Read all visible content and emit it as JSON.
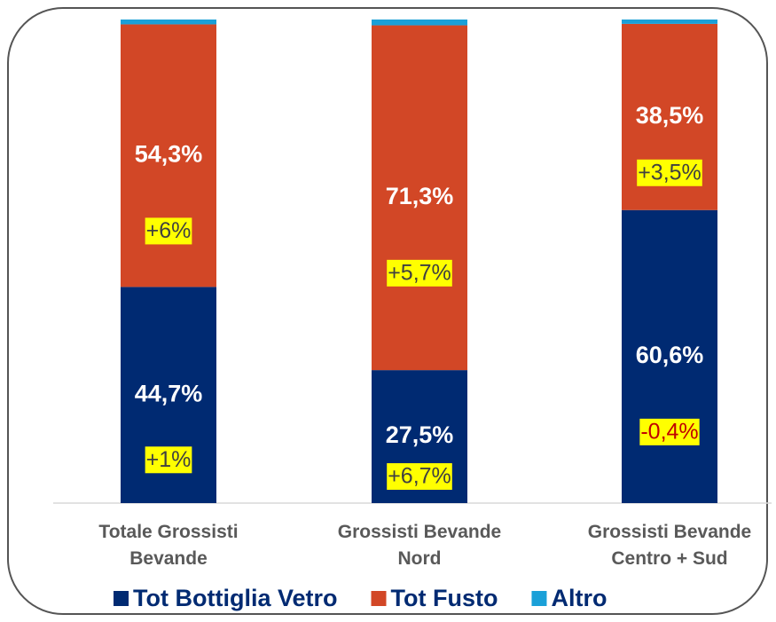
{
  "chart_data": {
    "type": "stacked_bar",
    "categories": [
      "Totale Grossisti\nBevande",
      "Grossisti Bevande\nNord",
      "Grossisti Bevande\nCentro + Sud"
    ],
    "ylim": [
      0,
      100
    ],
    "negative_color": "#c00000",
    "highlight_color": "#ffff00",
    "series": [
      {
        "name": "Tot Bottiglia Vetro",
        "color": "#002a72",
        "values": [
          44.7,
          27.5,
          60.6
        ],
        "value_labels": [
          "44,7%",
          "27,5%",
          "60,6%"
        ],
        "change_labels": [
          "+1%",
          "+6,7%",
          "-0,4%"
        ]
      },
      {
        "name": "Tot Fusto",
        "color": "#d24726",
        "values": [
          54.3,
          71.3,
          38.5
        ],
        "value_labels": [
          "54,3%",
          "71,3%",
          "38,5%"
        ],
        "change_labels": [
          "+6%",
          "+5,7%",
          "+3,5%"
        ]
      },
      {
        "name": "Altro",
        "color": "#1aa0d8",
        "values": [
          1.0,
          1.2,
          0.9
        ]
      }
    ]
  }
}
